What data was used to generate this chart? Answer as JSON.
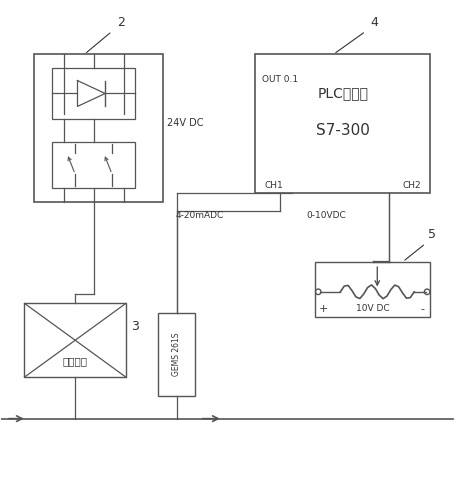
{
  "bg_color": "#ffffff",
  "line_color": "#555555",
  "box_color": "#555555",
  "text_color": "#333333",
  "fig_width": 4.64,
  "fig_height": 4.96,
  "dpi": 100,
  "component2_label": "2",
  "component4_label": "4",
  "component3_label": "3",
  "component5_label": "5",
  "plc_title": "PLC控制器",
  "plc_model": "S7-300",
  "plc_out": "OUT 0.1",
  "plc_ch1": "CH1",
  "plc_ch2": "CH2",
  "signal_4_20": "4-20mADC",
  "signal_0_10": "0-10VDC",
  "voltage_24": "24V DC",
  "voltage_10": "10V DC",
  "motor_label": "液压马达",
  "sensor_label": "GEMS 261S",
  "resistor_plus": "+",
  "resistor_minus": "-"
}
